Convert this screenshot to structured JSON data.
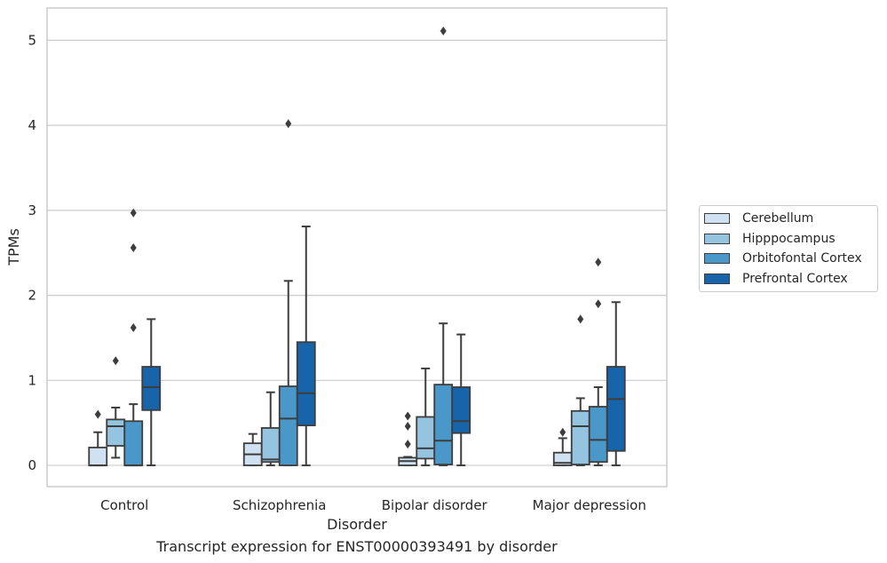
{
  "chart_data": {
    "type": "box",
    "title": "",
    "caption": "Transcript expression for ENST00000393491 by disorder",
    "xlabel": "Disorder",
    "ylabel": "TPMs",
    "categories": [
      "Control",
      "Schizophrenia",
      "Bipolar disorder",
      "Major depression"
    ],
    "ylim": [
      -0.25,
      5.38
    ],
    "yticks": [
      0,
      1,
      2,
      3,
      4,
      5
    ],
    "grid": true,
    "legend_position": "right",
    "series": [
      {
        "name": "Cerebellum",
        "color": "#d0e1f2",
        "boxes": [
          {
            "whislo": 0.0,
            "q1": 0.0,
            "med": 0.0,
            "q3": 0.21,
            "whishi": 0.39,
            "fliers": [
              0.6
            ]
          },
          {
            "whislo": 0.0,
            "q1": 0.0,
            "med": 0.13,
            "q3": 0.26,
            "whishi": 0.37,
            "fliers": []
          },
          {
            "whislo": 0.0,
            "q1": 0.0,
            "med": 0.05,
            "q3": 0.09,
            "whishi": 0.1,
            "fliers": [
              0.25,
              0.46,
              0.58
            ]
          },
          {
            "whislo": 0.0,
            "q1": 0.0,
            "med": 0.03,
            "q3": 0.15,
            "whishi": 0.32,
            "fliers": [
              0.39
            ]
          }
        ]
      },
      {
        "name": "Hipppocampus",
        "color": "#94c4df",
        "boxes": [
          {
            "whislo": 0.09,
            "q1": 0.23,
            "med": 0.46,
            "q3": 0.54,
            "whishi": 0.68,
            "fliers": [
              1.23
            ]
          },
          {
            "whislo": 0.0,
            "q1": 0.04,
            "med": 0.07,
            "q3": 0.44,
            "whishi": 0.86,
            "fliers": []
          },
          {
            "whislo": 0.0,
            "q1": 0.08,
            "med": 0.2,
            "q3": 0.57,
            "whishi": 1.14,
            "fliers": []
          },
          {
            "whislo": 0.0,
            "q1": 0.01,
            "med": 0.46,
            "q3": 0.64,
            "whishi": 0.79,
            "fliers": [
              1.72
            ]
          }
        ]
      },
      {
        "name": "Orbitofontal Cortex",
        "color": "#4a98c9",
        "boxes": [
          {
            "whislo": 0.0,
            "q1": 0.0,
            "med": 0.0,
            "q3": 0.52,
            "whishi": 0.72,
            "fliers": [
              1.62,
              2.56,
              2.97
            ]
          },
          {
            "whislo": 0.0,
            "q1": 0.0,
            "med": 0.55,
            "q3": 0.93,
            "whishi": 2.17,
            "fliers": [
              4.02
            ]
          },
          {
            "whislo": 0.0,
            "q1": 0.01,
            "med": 0.29,
            "q3": 0.95,
            "whishi": 1.67,
            "fliers": [
              5.11
            ]
          },
          {
            "whislo": 0.0,
            "q1": 0.04,
            "med": 0.3,
            "q3": 0.69,
            "whishi": 0.92,
            "fliers": [
              1.9,
              2.39
            ]
          }
        ]
      },
      {
        "name": "Prefrontal Cortex",
        "color": "#1764ab",
        "boxes": [
          {
            "whislo": 0.0,
            "q1": 0.65,
            "med": 0.92,
            "q3": 1.16,
            "whishi": 1.72,
            "fliers": []
          },
          {
            "whislo": 0.0,
            "q1": 0.47,
            "med": 0.85,
            "q3": 1.45,
            "whishi": 2.81,
            "fliers": []
          },
          {
            "whislo": 0.0,
            "q1": 0.38,
            "med": 0.52,
            "q3": 0.92,
            "whishi": 1.54,
            "fliers": []
          },
          {
            "whislo": 0.0,
            "q1": 0.17,
            "med": 0.78,
            "q3": 1.16,
            "whishi": 1.92,
            "fliers": []
          }
        ]
      }
    ]
  }
}
